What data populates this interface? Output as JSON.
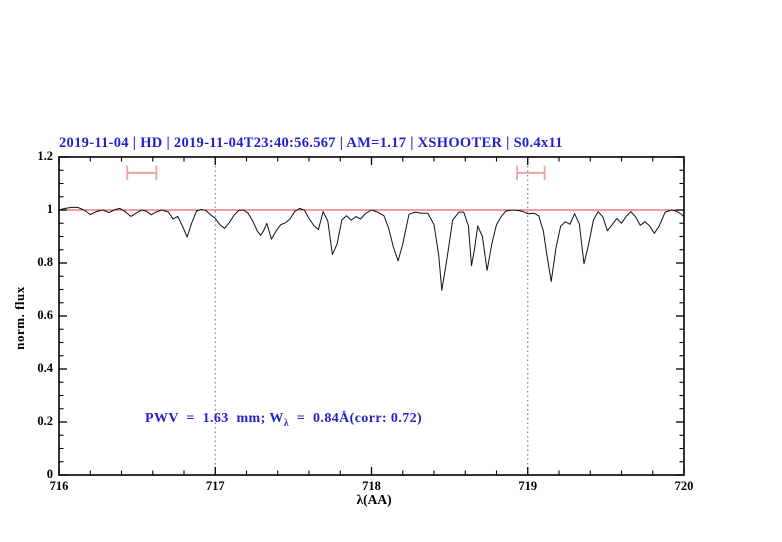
{
  "header": {
    "title": "2019-11-04 | HD | 2019-11-04T23:40:56.567 | AM=1.17 | XSHOOTER | S0.4x11"
  },
  "annotation": {
    "prefix": "PWV  =  1.63  mm; W",
    "sub": "λ",
    "suffix": "  =  0.84Å(corr: 0.72)"
  },
  "colors": {
    "accent_blue": "#2222cc",
    "continuum_red": "#dd3c3c",
    "marker_pink": "#f4a2a2",
    "spectrum_black": "#111111",
    "vline_gray": "#666666",
    "axis_black": "#000000"
  },
  "chart_data": {
    "type": "line",
    "title": "2019-11-04 | HD | 2019-11-04T23:40:56.567 | AM=1.17 | XSHOOTER | S0.4x11",
    "xlabel": "λ(AA)",
    "ylabel": "norm. flux",
    "xlim": [
      716,
      720
    ],
    "ylim": [
      0,
      1.2
    ],
    "x_ticks": [
      [
        716,
        "716"
      ],
      [
        717,
        "717"
      ],
      [
        718,
        "718"
      ],
      [
        719,
        "719"
      ],
      [
        720,
        "720"
      ]
    ],
    "y_ticks": [
      [
        0,
        "0"
      ],
      [
        0.2,
        "0.2"
      ],
      [
        0.4,
        "0.4"
      ],
      [
        0.6,
        "0.6"
      ],
      [
        0.8,
        "0.8"
      ],
      [
        1,
        "1"
      ],
      [
        1.2,
        "1.2"
      ]
    ],
    "x_minor_step": 0.2,
    "y_minor_step": 0.05,
    "grid": "off",
    "legend": "none",
    "vlines_dotted": [
      717,
      719
    ],
    "continuum_line_y": 1.0,
    "pwv_mm": 1.63,
    "equivalent_width_angstrom": 0.84,
    "correction": 0.72,
    "markers": [
      {
        "type": "horizontal-errorbar",
        "x_center": 716.53,
        "x_half_width": 0.093,
        "y": 1.14,
        "cap_half_height": 0.028
      },
      {
        "type": "horizontal-errorbar",
        "x_center": 719.02,
        "x_half_width": 0.088,
        "y": 1.14,
        "cap_half_height": 0.028
      }
    ],
    "series": [
      {
        "name": "telluric-spectrum",
        "points": [
          [
            716.0,
            1.0
          ],
          [
            716.04,
            1.006
          ],
          [
            716.08,
            1.01
          ],
          [
            716.12,
            1.01
          ],
          [
            716.16,
            1.0
          ],
          [
            716.2,
            0.983
          ],
          [
            716.24,
            0.994
          ],
          [
            716.28,
            1.0
          ],
          [
            716.32,
            0.99
          ],
          [
            716.36,
            1.002
          ],
          [
            716.39,
            1.006
          ],
          [
            716.42,
            0.995
          ],
          [
            716.46,
            0.976
          ],
          [
            716.5,
            0.99
          ],
          [
            716.53,
            1.0
          ],
          [
            716.56,
            0.995
          ],
          [
            716.59,
            0.982
          ],
          [
            716.62,
            0.992
          ],
          [
            716.66,
            1.0
          ],
          [
            716.7,
            0.992
          ],
          [
            716.73,
            0.966
          ],
          [
            716.76,
            0.976
          ],
          [
            716.79,
            0.94
          ],
          [
            716.82,
            0.898
          ],
          [
            716.85,
            0.952
          ],
          [
            716.88,
            0.996
          ],
          [
            716.91,
            1.002
          ],
          [
            716.94,
            0.998
          ],
          [
            716.97,
            0.982
          ],
          [
            717.0,
            0.968
          ],
          [
            717.03,
            0.945
          ],
          [
            717.06,
            0.931
          ],
          [
            717.09,
            0.952
          ],
          [
            717.12,
            0.98
          ],
          [
            717.15,
            0.998
          ],
          [
            717.18,
            1.0
          ],
          [
            717.21,
            0.988
          ],
          [
            717.24,
            0.958
          ],
          [
            717.27,
            0.92
          ],
          [
            717.29,
            0.904
          ],
          [
            717.31,
            0.922
          ],
          [
            717.33,
            0.95
          ],
          [
            717.36,
            0.89
          ],
          [
            717.39,
            0.922
          ],
          [
            717.42,
            0.945
          ],
          [
            717.45,
            0.952
          ],
          [
            717.48,
            0.968
          ],
          [
            717.51,
            0.995
          ],
          [
            717.54,
            1.006
          ],
          [
            717.57,
            1.0
          ],
          [
            717.6,
            0.968
          ],
          [
            717.63,
            0.942
          ],
          [
            717.66,
            0.926
          ],
          [
            717.69,
            0.994
          ],
          [
            717.72,
            0.958
          ],
          [
            717.75,
            0.832
          ],
          [
            717.78,
            0.872
          ],
          [
            717.81,
            0.962
          ],
          [
            717.84,
            0.978
          ],
          [
            717.87,
            0.962
          ],
          [
            717.9,
            0.975
          ],
          [
            717.93,
            0.966
          ],
          [
            717.96,
            0.986
          ],
          [
            718.0,
            1.0
          ],
          [
            718.04,
            0.992
          ],
          [
            718.08,
            0.978
          ],
          [
            718.11,
            0.93
          ],
          [
            718.14,
            0.86
          ],
          [
            718.17,
            0.808
          ],
          [
            718.2,
            0.872
          ],
          [
            718.24,
            0.984
          ],
          [
            718.28,
            0.992
          ],
          [
            718.32,
            0.988
          ],
          [
            718.36,
            0.988
          ],
          [
            718.4,
            0.945
          ],
          [
            718.43,
            0.83
          ],
          [
            718.45,
            0.697
          ],
          [
            718.48,
            0.805
          ],
          [
            718.52,
            0.962
          ],
          [
            718.56,
            0.992
          ],
          [
            718.59,
            0.992
          ],
          [
            718.62,
            0.94
          ],
          [
            718.64,
            0.79
          ],
          [
            718.66,
            0.855
          ],
          [
            718.68,
            0.94
          ],
          [
            718.71,
            0.9
          ],
          [
            718.74,
            0.772
          ],
          [
            718.77,
            0.872
          ],
          [
            718.8,
            0.945
          ],
          [
            718.83,
            0.975
          ],
          [
            718.86,
            0.996
          ],
          [
            718.9,
            1.0
          ],
          [
            718.94,
            0.998
          ],
          [
            718.97,
            0.994
          ],
          [
            719.0,
            0.986
          ],
          [
            719.04,
            0.988
          ],
          [
            719.07,
            0.978
          ],
          [
            719.1,
            0.92
          ],
          [
            719.12,
            0.84
          ],
          [
            719.15,
            0.73
          ],
          [
            719.18,
            0.855
          ],
          [
            719.21,
            0.938
          ],
          [
            719.24,
            0.956
          ],
          [
            719.27,
            0.946
          ],
          [
            719.3,
            0.986
          ],
          [
            719.33,
            0.948
          ],
          [
            719.36,
            0.797
          ],
          [
            719.39,
            0.872
          ],
          [
            719.42,
            0.962
          ],
          [
            719.45,
            0.994
          ],
          [
            719.48,
            0.974
          ],
          [
            719.51,
            0.922
          ],
          [
            719.54,
            0.944
          ],
          [
            719.57,
            0.968
          ],
          [
            719.6,
            0.95
          ],
          [
            719.63,
            0.976
          ],
          [
            719.66,
            0.994
          ],
          [
            719.69,
            0.974
          ],
          [
            719.72,
            0.942
          ],
          [
            719.75,
            0.956
          ],
          [
            719.78,
            0.94
          ],
          [
            719.81,
            0.912
          ],
          [
            719.84,
            0.938
          ],
          [
            719.88,
            0.992
          ],
          [
            719.92,
            1.0
          ],
          [
            719.95,
            0.996
          ],
          [
            719.98,
            0.985
          ],
          [
            720.0,
            0.975
          ]
        ]
      }
    ]
  }
}
